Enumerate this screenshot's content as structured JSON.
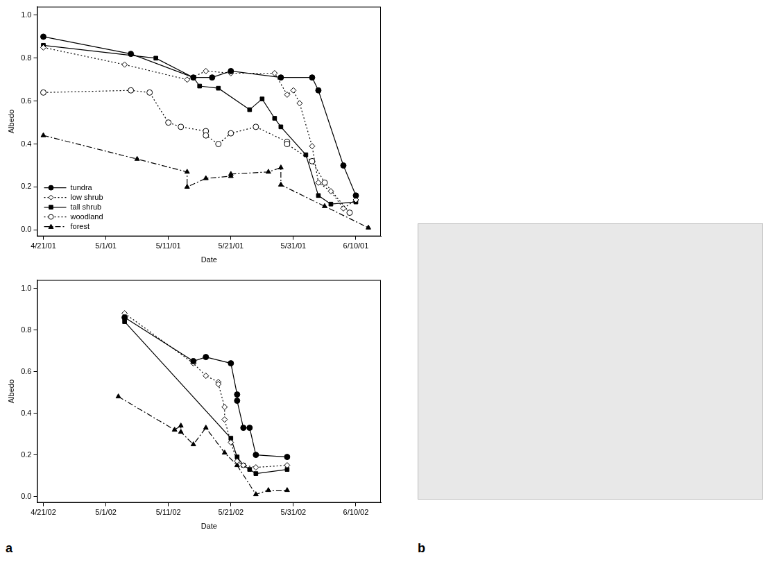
{
  "chart_data": [
    {
      "type": "line",
      "x_label": "Date",
      "y_label": "Albedo",
      "grid": false,
      "legend": "lower left",
      "xlim": [
        "2001-04-20",
        "2001-06-14"
      ],
      "xticks": [
        {
          "value": "2001-04-21",
          "label": "4/21/01"
        },
        {
          "value": "2001-05-01",
          "label": "5/1/01"
        },
        {
          "value": "2001-05-11",
          "label": "5/11/01"
        },
        {
          "value": "2001-05-21",
          "label": "5/21/01"
        },
        {
          "value": "2001-05-31",
          "label": "5/31/01"
        },
        {
          "value": "2001-06-10",
          "label": "6/10/01"
        }
      ],
      "ylim": [
        -0.03,
        1.04
      ],
      "yticks": [
        {
          "value": 0,
          "label": "0.0"
        },
        {
          "value": 0.2,
          "label": "0.2"
        },
        {
          "value": 0.4,
          "label": "0.4"
        },
        {
          "value": 0.6,
          "label": "0.6"
        },
        {
          "value": 0.8,
          "label": "0.8"
        },
        {
          "value": 1,
          "label": "1.0"
        }
      ],
      "series": [
        {
          "name": "tundra",
          "color": "#000000",
          "marker": "circle",
          "line_style": "solid",
          "x": [
            "2001-04-21",
            "2001-05-05",
            "2001-05-15",
            "2001-05-18",
            "2001-05-21",
            "2001-05-29",
            "2001-06-03",
            "2001-06-04",
            "2001-06-08",
            "2001-06-10"
          ],
          "values": [
            0.9,
            0.82,
            0.71,
            0.71,
            0.74,
            0.71,
            0.71,
            0.65,
            0.3,
            0.16
          ]
        },
        {
          "name": "low shrub",
          "color": "#000000",
          "marker": "open_diamond",
          "line_style": "dotted",
          "x": [
            "2001-04-21",
            "2001-05-04",
            "2001-05-14",
            "2001-05-17",
            "2001-05-21",
            "2001-05-28",
            "2001-05-30",
            "2001-05-31",
            "2001-06-01",
            "2001-06-03",
            "2001-06-04",
            "2001-06-06",
            "2001-06-08",
            "2001-06-10"
          ],
          "values": [
            0.85,
            0.77,
            0.7,
            0.74,
            0.73,
            0.73,
            0.63,
            0.65,
            0.59,
            0.39,
            0.22,
            0.18,
            0.1,
            0.14
          ]
        },
        {
          "name": "tall shrub",
          "color": "#000000",
          "marker": "square",
          "line_style": "solid",
          "x": [
            "2001-04-21",
            "2001-05-09",
            "2001-05-15",
            "2001-05-16",
            "2001-05-19",
            "2001-05-24",
            "2001-05-26",
            "2001-05-28",
            "2001-05-29",
            "2001-06-02",
            "2001-06-04",
            "2001-06-06",
            "2001-06-10"
          ],
          "values": [
            0.86,
            0.8,
            0.71,
            0.67,
            0.66,
            0.56,
            0.61,
            0.52,
            0.48,
            0.35,
            0.16,
            0.12,
            0.13
          ]
        },
        {
          "name": "woodland",
          "color": "#000000",
          "marker": "open_circle",
          "line_style": "dotted",
          "x": [
            "2001-04-21",
            "2001-05-05",
            "2001-05-08",
            "2001-05-11",
            "2001-05-13",
            "2001-05-17",
            "2001-05-17",
            "2001-05-19",
            "2001-05-21",
            "2001-05-25",
            "2001-05-30",
            "2001-05-30",
            "2001-06-03",
            "2001-06-05",
            "2001-06-09"
          ],
          "values": [
            0.64,
            0.65,
            0.64,
            0.5,
            0.48,
            0.46,
            0.44,
            0.4,
            0.45,
            0.48,
            0.41,
            0.4,
            0.32,
            0.22,
            0.08
          ]
        },
        {
          "name": "forest",
          "color": "#000000",
          "marker": "triangle",
          "line_style": "dashdot",
          "x": [
            "2001-04-21",
            "2001-05-06",
            "2001-05-14",
            "2001-05-14",
            "2001-05-17",
            "2001-05-21",
            "2001-05-21",
            "2001-05-27",
            "2001-05-29",
            "2001-05-29",
            "2001-06-05",
            "2001-06-12"
          ],
          "values": [
            0.44,
            0.33,
            0.27,
            0.2,
            0.24,
            0.25,
            0.26,
            0.27,
            0.29,
            0.21,
            0.11,
            0.01
          ]
        }
      ]
    },
    {
      "type": "line",
      "x_label": "Date",
      "y_label": "Albedo",
      "grid": false,
      "xlim": [
        "2002-04-20",
        "2002-06-14"
      ],
      "xticks": [
        {
          "value": "2002-04-21",
          "label": "4/21/02"
        },
        {
          "value": "2002-05-01",
          "label": "5/1/02"
        },
        {
          "value": "2002-05-11",
          "label": "5/11/02"
        },
        {
          "value": "2002-05-21",
          "label": "5/21/02"
        },
        {
          "value": "2002-05-31",
          "label": "5/31/02"
        },
        {
          "value": "2002-06-10",
          "label": "6/10/02"
        }
      ],
      "ylim": [
        -0.03,
        1.04
      ],
      "yticks": [
        {
          "value": 0,
          "label": "0.0"
        },
        {
          "value": 0.2,
          "label": "0.2"
        },
        {
          "value": 0.4,
          "label": "0.4"
        },
        {
          "value": 0.6,
          "label": "0.6"
        },
        {
          "value": 0.8,
          "label": "0.8"
        },
        {
          "value": 1,
          "label": "1.0"
        }
      ],
      "series": [
        {
          "color": "#000000",
          "marker": "circle",
          "line_style": "solid",
          "x": [
            "2002-05-04",
            "2002-05-15",
            "2002-05-17",
            "2002-05-21",
            "2002-05-22",
            "2002-05-22",
            "2002-05-23",
            "2002-05-24",
            "2002-05-25",
            "2002-05-30"
          ],
          "values": [
            0.86,
            0.65,
            0.67,
            0.64,
            0.49,
            0.46,
            0.33,
            0.33,
            0.2,
            0.19
          ]
        },
        {
          "color": "#000000",
          "marker": "open_diamond",
          "line_style": "dotted",
          "x": [
            "2002-05-04",
            "2002-05-15",
            "2002-05-17",
            "2002-05-19",
            "2002-05-19",
            "2002-05-20",
            "2002-05-20",
            "2002-05-21",
            "2002-05-22",
            "2002-05-23",
            "2002-05-25",
            "2002-05-30"
          ],
          "values": [
            0.88,
            0.64,
            0.58,
            0.55,
            0.54,
            0.43,
            0.37,
            0.26,
            0.17,
            0.15,
            0.14,
            0.15
          ]
        },
        {
          "color": "#000000",
          "marker": "square",
          "line_style": "solid",
          "x": [
            "2002-05-04",
            "2002-05-21",
            "2002-05-22",
            "2002-05-23",
            "2002-05-24",
            "2002-05-25",
            "2002-05-30"
          ],
          "values": [
            0.84,
            0.28,
            0.19,
            0.15,
            0.13,
            0.11,
            0.13
          ]
        },
        {
          "color": "#000000",
          "marker": "triangle",
          "line_style": "dashdot",
          "x": [
            "2002-05-03",
            "2002-05-12",
            "2002-05-13",
            "2002-05-13",
            "2002-05-15",
            "2002-05-17",
            "2002-05-20",
            "2002-05-22",
            "2002-05-25",
            "2002-05-27",
            "2002-05-30"
          ],
          "values": [
            0.48,
            0.32,
            0.34,
            0.31,
            0.25,
            0.33,
            0.21,
            0.15,
            0.01,
            0.03,
            0.03
          ]
        }
      ]
    }
  ],
  "panel_labels": [
    "a",
    "b"
  ]
}
